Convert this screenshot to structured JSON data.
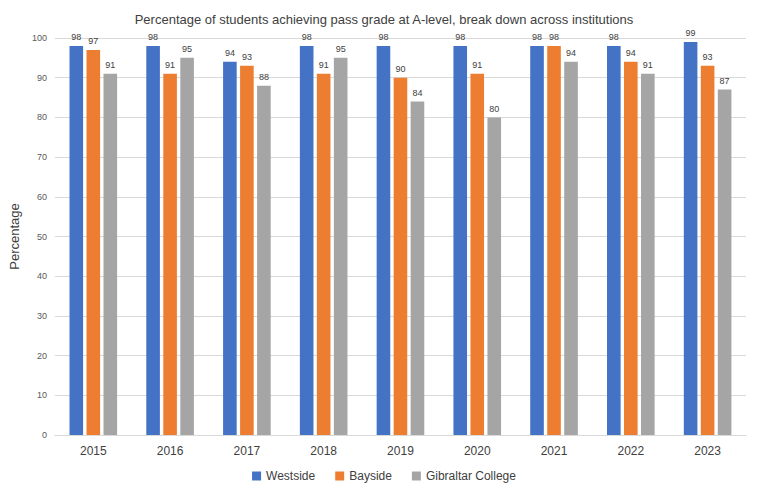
{
  "chart_data": {
    "type": "bar",
    "title": "Percentage of students achieving pass grade at A-level, break down across institutions",
    "ylabel": "Percentage",
    "categories": [
      "2015",
      "2016",
      "2017",
      "2018",
      "2019",
      "2020",
      "2021",
      "2022",
      "2023"
    ],
    "series": [
      {
        "name": "Westside",
        "color": "#4472c4",
        "values": [
          98,
          98,
          94,
          98,
          98,
          98,
          98,
          98,
          99
        ]
      },
      {
        "name": "Bayside",
        "color": "#ed7d31",
        "values": [
          97,
          91,
          93,
          91,
          90,
          91,
          98,
          94,
          93
        ]
      },
      {
        "name": "Gibraltar College",
        "color": "#a5a5a5",
        "values": [
          91,
          95,
          88,
          95,
          84,
          80,
          94,
          91,
          87
        ]
      }
    ],
    "ylim": [
      0,
      100
    ],
    "yticks": [
      0,
      10,
      20,
      30,
      40,
      50,
      60,
      70,
      80,
      90,
      100
    ],
    "grid": true,
    "legend": "bottom",
    "data_labels": true
  }
}
